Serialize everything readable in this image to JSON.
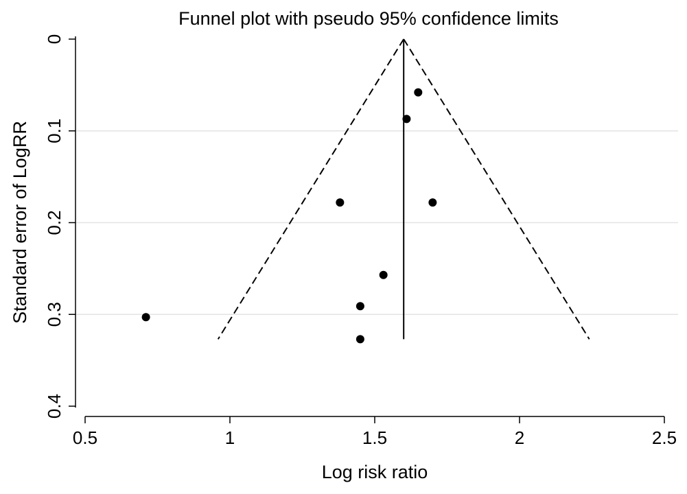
{
  "chart_data": {
    "type": "scatter",
    "title": "Funnel plot with pseudo 95% confidence limits",
    "xlabel": "Log risk ratio",
    "ylabel": "Standard error of LogRR",
    "xlim": [
      0.5,
      2.5
    ],
    "ylim": [
      0,
      0.4
    ],
    "y_reversed": true,
    "x_ticks": [
      "0.5",
      "1",
      "1.5",
      "2",
      "2.5"
    ],
    "y_ticks": [
      "0",
      "0.1",
      "0.2",
      "0.3",
      "0.4"
    ],
    "grid": "horizontal",
    "points": [
      {
        "x": 1.65,
        "y": 0.058
      },
      {
        "x": 1.61,
        "y": 0.087
      },
      {
        "x": 1.38,
        "y": 0.178
      },
      {
        "x": 1.7,
        "y": 0.178
      },
      {
        "x": 1.53,
        "y": 0.257
      },
      {
        "x": 1.45,
        "y": 0.291
      },
      {
        "x": 0.71,
        "y": 0.303
      },
      {
        "x": 1.45,
        "y": 0.327
      }
    ],
    "pooled_estimate": 1.6,
    "max_se": 0.327,
    "ci_multiplier": 1.96,
    "colors": {
      "points": "#000000",
      "grid": "#e3e3e3",
      "lines": "#000000"
    }
  }
}
